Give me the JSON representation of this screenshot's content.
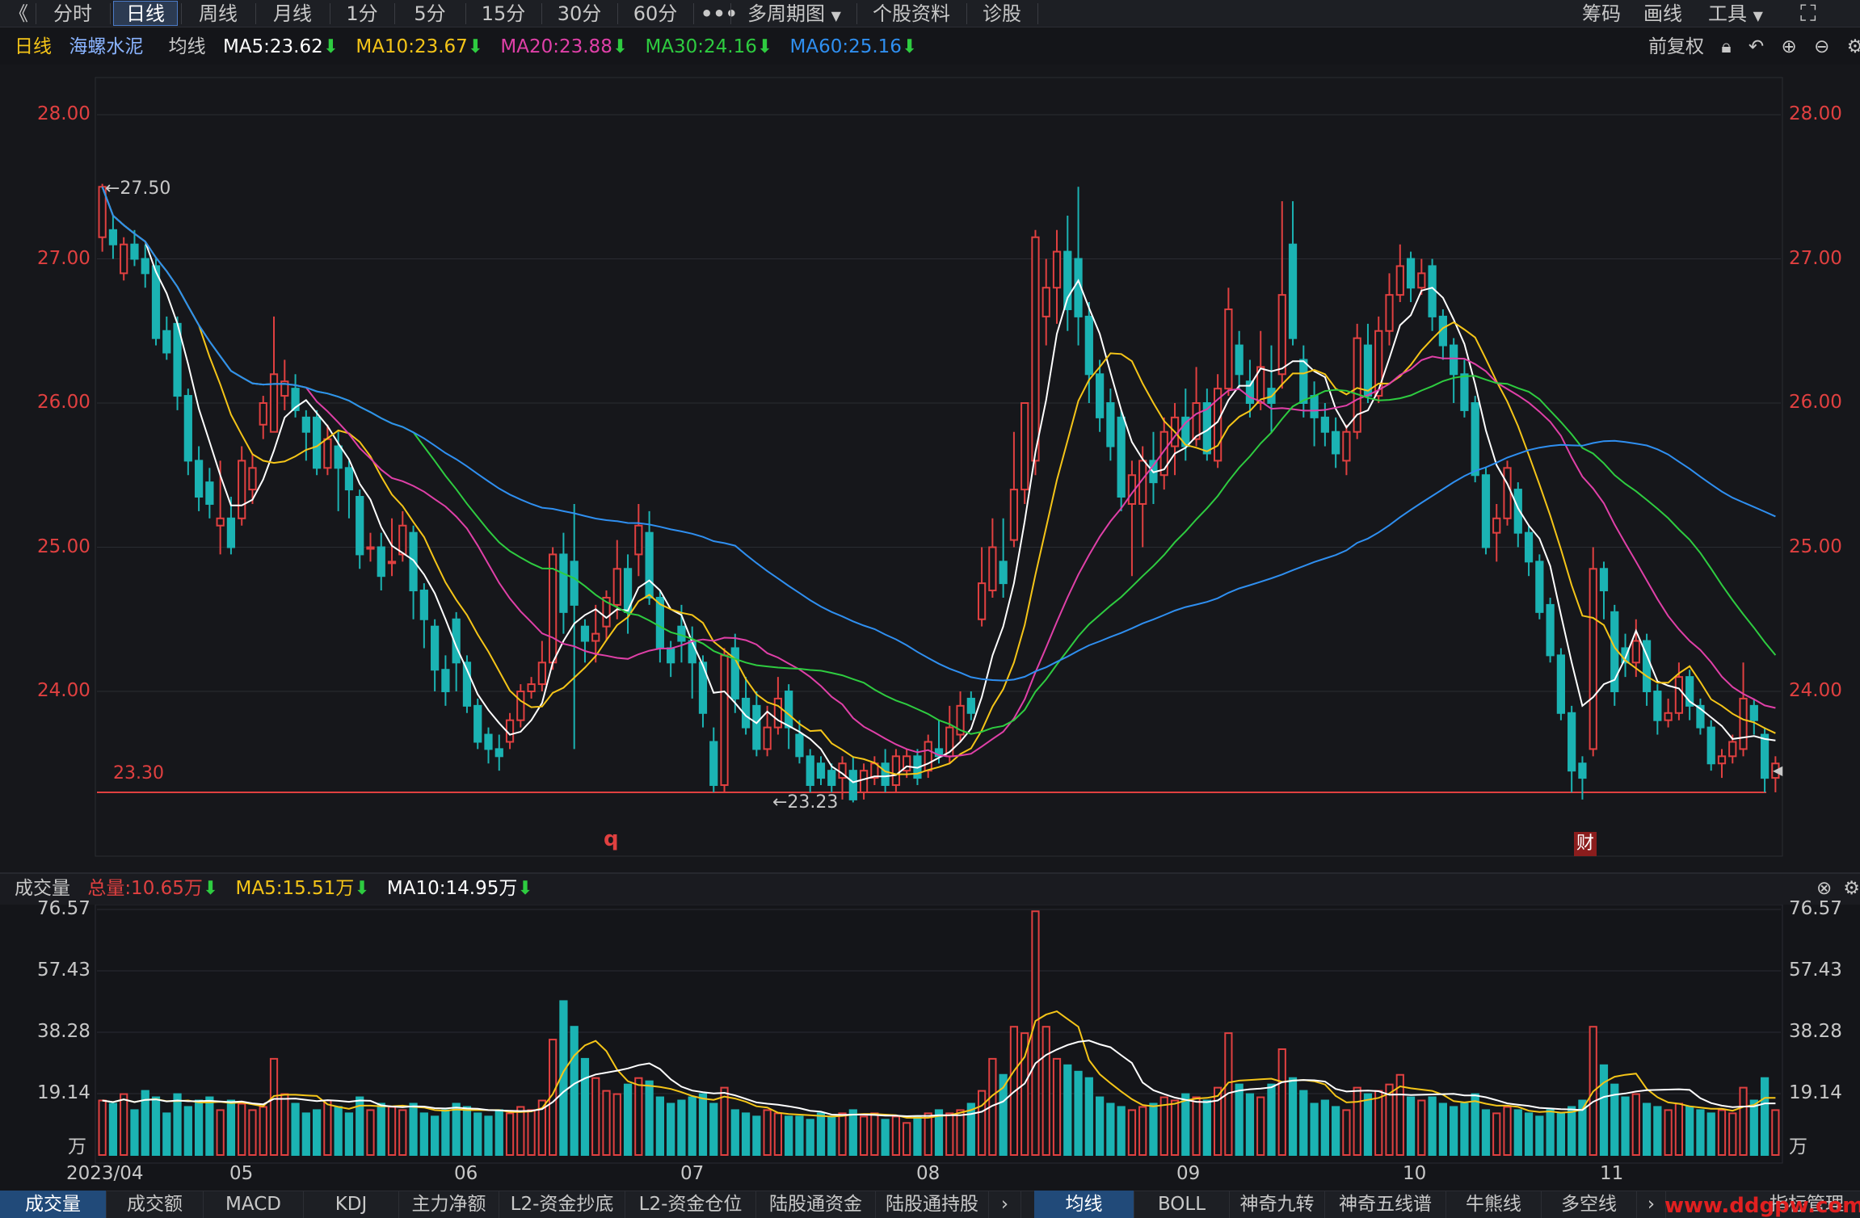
{
  "toolbar": {
    "collapse": "《",
    "periods": [
      "分时",
      "日线",
      "周线",
      "月线",
      "1分",
      "5分",
      "15分",
      "30分",
      "60分"
    ],
    "more": "•••",
    "multi_period": "多周期图",
    "stock_info": "个股资料",
    "diagnose": "诊股",
    "right": [
      "筹码",
      "画线",
      "工具"
    ],
    "fullscreen": "⛶"
  },
  "legend": {
    "period": "日线",
    "stock": "海螺水泥",
    "avg": "均线",
    "ma5": "MA5:23.62",
    "ma10": "MA10:23.67",
    "ma20": "MA20:23.88",
    "ma30": "MA30:24.16",
    "ma60": "MA60:25.16",
    "adjust": "前复权"
  },
  "colors": {
    "up": "#e04040",
    "down": "#1bb3b3",
    "ma5": "#ffffff",
    "ma10": "#f5c518",
    "ma20": "#e040a8",
    "ma30": "#2ecc40",
    "ma60": "#2f8ff0"
  },
  "price_axis": [
    "28.00",
    "27.00",
    "26.00",
    "25.00",
    "24.00"
  ],
  "markers": {
    "high": "←27.50",
    "low": "←23.23",
    "support": "23.30",
    "q": "q",
    "fin": "财"
  },
  "volume_legend": {
    "title": "成交量",
    "total": "总量:10.65万",
    "ma5": "MA5:15.51万",
    "ma10": "MA10:14.95万"
  },
  "volume_axis": [
    "76.57",
    "57.43",
    "38.28",
    "19.14",
    "万"
  ],
  "date_axis": [
    "2023/04",
    "05",
    "06",
    "07",
    "08",
    "09",
    "10",
    "11"
  ],
  "bottom_tabs_left": [
    "成交量",
    "成交额",
    "MACD",
    "KDJ",
    "主力净额",
    "L2-资金抄底",
    "L2-资金仓位",
    "陆股通资金",
    "陆股通持股"
  ],
  "bottom_tabs_right": [
    "均线",
    "BOLL",
    "神奇九转",
    "神奇五线谱",
    "牛熊线",
    "多空线",
    "指标管理"
  ],
  "watermark": "www.ddgpw.com",
  "chart_data": {
    "type": "candlestick",
    "title": "海螺水泥 日线",
    "x_range": [
      "2023-04",
      "2023-11"
    ],
    "y_range": [
      23.0,
      28.2
    ],
    "volume_unit": "万",
    "volume_max": 76.57,
    "moving_averages": [
      5,
      10,
      20,
      30,
      60
    ],
    "candles": [
      {
        "o": 27.15,
        "c": 27.5,
        "h": 27.52,
        "l": 27.05,
        "v": 17
      },
      {
        "o": 27.2,
        "c": 27.1,
        "h": 27.3,
        "l": 27.0,
        "v": 16
      },
      {
        "o": 26.9,
        "c": 27.1,
        "h": 27.15,
        "l": 26.85,
        "v": 19
      },
      {
        "o": 27.1,
        "c": 27.0,
        "h": 27.2,
        "l": 26.95,
        "v": 14
      },
      {
        "o": 27.0,
        "c": 26.9,
        "h": 27.1,
        "l": 26.8,
        "v": 20
      },
      {
        "o": 26.95,
        "c": 26.45,
        "h": 27.0,
        "l": 26.4,
        "v": 18
      },
      {
        "o": 26.5,
        "c": 26.35,
        "h": 26.6,
        "l": 26.3,
        "v": 13
      },
      {
        "o": 26.55,
        "c": 26.05,
        "h": 26.6,
        "l": 25.95,
        "v": 19
      },
      {
        "o": 26.05,
        "c": 25.6,
        "h": 26.1,
        "l": 25.5,
        "v": 15
      },
      {
        "o": 25.6,
        "c": 25.35,
        "h": 25.7,
        "l": 25.25,
        "v": 17
      },
      {
        "o": 25.45,
        "c": 25.3,
        "h": 25.55,
        "l": 25.2,
        "v": 18
      },
      {
        "o": 25.15,
        "c": 25.2,
        "h": 25.6,
        "l": 24.95,
        "v": 14
      },
      {
        "o": 25.2,
        "c": 25.0,
        "h": 25.35,
        "l": 24.95,
        "v": 17
      },
      {
        "o": 25.2,
        "c": 25.6,
        "h": 25.7,
        "l": 25.15,
        "v": 16
      },
      {
        "o": 25.4,
        "c": 25.55,
        "h": 25.65,
        "l": 25.3,
        "v": 14
      },
      {
        "o": 25.85,
        "c": 26.0,
        "h": 26.05,
        "l": 25.75,
        "v": 15
      },
      {
        "o": 25.8,
        "c": 26.2,
        "h": 26.6,
        "l": 25.8,
        "v": 30
      },
      {
        "o": 26.05,
        "c": 26.15,
        "h": 26.3,
        "l": 25.95,
        "v": 19
      },
      {
        "o": 26.1,
        "c": 25.95,
        "h": 26.2,
        "l": 25.9,
        "v": 16
      },
      {
        "o": 25.9,
        "c": 25.8,
        "h": 25.95,
        "l": 25.6,
        "v": 13
      },
      {
        "o": 25.9,
        "c": 25.55,
        "h": 25.95,
        "l": 25.5,
        "v": 14
      },
      {
        "o": 25.55,
        "c": 25.75,
        "h": 25.85,
        "l": 25.5,
        "v": 17
      },
      {
        "o": 25.7,
        "c": 25.55,
        "h": 25.8,
        "l": 25.25,
        "v": 15
      },
      {
        "o": 25.55,
        "c": 25.4,
        "h": 25.6,
        "l": 25.2,
        "v": 13
      },
      {
        "o": 25.35,
        "c": 24.95,
        "h": 25.4,
        "l": 24.85,
        "v": 18
      },
      {
        "o": 25.0,
        "c": 25.0,
        "h": 25.1,
        "l": 24.9,
        "v": 14
      },
      {
        "o": 25.0,
        "c": 24.8,
        "h": 25.1,
        "l": 24.7,
        "v": 16
      },
      {
        "o": 24.9,
        "c": 24.9,
        "h": 25.2,
        "l": 24.8,
        "v": 15
      },
      {
        "o": 24.95,
        "c": 25.15,
        "h": 25.25,
        "l": 24.9,
        "v": 14
      },
      {
        "o": 25.1,
        "c": 24.7,
        "h": 25.15,
        "l": 24.5,
        "v": 16
      },
      {
        "o": 24.7,
        "c": 24.5,
        "h": 24.75,
        "l": 24.3,
        "v": 13
      },
      {
        "o": 24.45,
        "c": 24.15,
        "h": 24.5,
        "l": 24.0,
        "v": 12
      },
      {
        "o": 24.15,
        "c": 24.0,
        "h": 24.25,
        "l": 23.9,
        "v": 14
      },
      {
        "o": 24.5,
        "c": 24.2,
        "h": 24.55,
        "l": 24.0,
        "v": 16
      },
      {
        "o": 24.2,
        "c": 23.9,
        "h": 24.25,
        "l": 23.85,
        "v": 15
      },
      {
        "o": 23.9,
        "c": 23.65,
        "h": 23.95,
        "l": 23.6,
        "v": 13
      },
      {
        "o": 23.7,
        "c": 23.6,
        "h": 23.75,
        "l": 23.5,
        "v": 12
      },
      {
        "o": 23.6,
        "c": 23.55,
        "h": 23.7,
        "l": 23.45,
        "v": 14
      },
      {
        "o": 23.65,
        "c": 23.8,
        "h": 23.85,
        "l": 23.6,
        "v": 13
      },
      {
        "o": 23.8,
        "c": 24.0,
        "h": 24.05,
        "l": 23.75,
        "v": 15
      },
      {
        "o": 24.0,
        "c": 24.05,
        "h": 24.1,
        "l": 23.95,
        "v": 14
      },
      {
        "o": 24.05,
        "c": 24.2,
        "h": 24.35,
        "l": 24.0,
        "v": 17
      },
      {
        "o": 24.2,
        "c": 24.95,
        "h": 25.0,
        "l": 24.15,
        "v": 36
      },
      {
        "o": 24.95,
        "c": 24.55,
        "h": 25.1,
        "l": 24.4,
        "v": 48
      },
      {
        "o": 24.9,
        "c": 24.6,
        "h": 25.3,
        "l": 23.6,
        "v": 40
      },
      {
        "o": 24.45,
        "c": 24.35,
        "h": 24.5,
        "l": 24.2,
        "v": 30
      },
      {
        "o": 24.35,
        "c": 24.4,
        "h": 24.6,
        "l": 24.2,
        "v": 24
      },
      {
        "o": 24.45,
        "c": 24.65,
        "h": 24.7,
        "l": 24.35,
        "v": 20
      },
      {
        "o": 24.6,
        "c": 24.85,
        "h": 25.05,
        "l": 24.5,
        "v": 19
      },
      {
        "o": 24.85,
        "c": 24.55,
        "h": 24.95,
        "l": 24.4,
        "v": 22
      },
      {
        "o": 24.95,
        "c": 25.15,
        "h": 25.3,
        "l": 24.8,
        "v": 24
      },
      {
        "o": 25.1,
        "c": 24.65,
        "h": 25.25,
        "l": 24.6,
        "v": 23
      },
      {
        "o": 24.65,
        "c": 24.3,
        "h": 24.7,
        "l": 24.2,
        "v": 18
      },
      {
        "o": 24.3,
        "c": 24.2,
        "h": 24.35,
        "l": 24.1,
        "v": 16
      },
      {
        "o": 24.45,
        "c": 24.35,
        "h": 24.6,
        "l": 24.2,
        "v": 17
      },
      {
        "o": 24.35,
        "c": 24.2,
        "h": 24.45,
        "l": 23.95,
        "v": 18
      },
      {
        "o": 24.2,
        "c": 23.85,
        "h": 24.25,
        "l": 23.75,
        "v": 19
      },
      {
        "o": 23.65,
        "c": 23.35,
        "h": 23.75,
        "l": 23.3,
        "v": 16
      },
      {
        "o": 23.35,
        "c": 24.25,
        "h": 24.3,
        "l": 23.3,
        "v": 21
      },
      {
        "o": 24.3,
        "c": 23.95,
        "h": 24.4,
        "l": 23.85,
        "v": 14
      },
      {
        "o": 23.95,
        "c": 23.75,
        "h": 24.1,
        "l": 23.7,
        "v": 13
      },
      {
        "o": 23.9,
        "c": 23.6,
        "h": 24.0,
        "l": 23.55,
        "v": 12
      },
      {
        "o": 23.6,
        "c": 23.75,
        "h": 23.9,
        "l": 23.55,
        "v": 14
      },
      {
        "o": 23.75,
        "c": 23.95,
        "h": 24.1,
        "l": 23.7,
        "v": 13
      },
      {
        "o": 24.0,
        "c": 23.75,
        "h": 24.05,
        "l": 23.6,
        "v": 12
      },
      {
        "o": 23.7,
        "c": 23.55,
        "h": 23.8,
        "l": 23.5,
        "v": 12
      },
      {
        "o": 23.55,
        "c": 23.35,
        "h": 23.6,
        "l": 23.3,
        "v": 11
      },
      {
        "o": 23.5,
        "c": 23.4,
        "h": 23.55,
        "l": 23.35,
        "v": 13
      },
      {
        "o": 23.45,
        "c": 23.35,
        "h": 23.5,
        "l": 23.3,
        "v": 12
      },
      {
        "o": 23.4,
        "c": 23.5,
        "h": 23.55,
        "l": 23.25,
        "v": 13
      },
      {
        "o": 23.45,
        "c": 23.25,
        "h": 23.55,
        "l": 23.23,
        "v": 14
      },
      {
        "o": 23.3,
        "c": 23.45,
        "h": 23.5,
        "l": 23.25,
        "v": 12
      },
      {
        "o": 23.4,
        "c": 23.5,
        "h": 23.55,
        "l": 23.35,
        "v": 13
      },
      {
        "o": 23.5,
        "c": 23.35,
        "h": 23.6,
        "l": 23.3,
        "v": 11
      },
      {
        "o": 23.35,
        "c": 23.55,
        "h": 23.6,
        "l": 23.3,
        "v": 12
      },
      {
        "o": 23.45,
        "c": 23.55,
        "h": 23.6,
        "l": 23.4,
        "v": 10
      },
      {
        "o": 23.55,
        "c": 23.4,
        "h": 23.6,
        "l": 23.35,
        "v": 12
      },
      {
        "o": 23.45,
        "c": 23.65,
        "h": 23.7,
        "l": 23.4,
        "v": 13
      },
      {
        "o": 23.6,
        "c": 23.55,
        "h": 23.8,
        "l": 23.5,
        "v": 14
      },
      {
        "o": 23.55,
        "c": 23.75,
        "h": 23.9,
        "l": 23.5,
        "v": 13
      },
      {
        "o": 23.7,
        "c": 23.9,
        "h": 24.0,
        "l": 23.65,
        "v": 14
      },
      {
        "o": 23.95,
        "c": 23.85,
        "h": 24.0,
        "l": 23.8,
        "v": 16
      },
      {
        "o": 24.5,
        "c": 24.75,
        "h": 25.0,
        "l": 24.45,
        "v": 20
      },
      {
        "o": 24.7,
        "c": 25.0,
        "h": 25.2,
        "l": 24.65,
        "v": 30
      },
      {
        "o": 24.9,
        "c": 24.75,
        "h": 25.2,
        "l": 24.65,
        "v": 25
      },
      {
        "o": 25.05,
        "c": 25.4,
        "h": 25.8,
        "l": 25.0,
        "v": 40
      },
      {
        "o": 25.4,
        "c": 26.0,
        "h": 26.0,
        "l": 25.3,
        "v": 38
      },
      {
        "o": 25.6,
        "c": 27.15,
        "h": 27.2,
        "l": 25.5,
        "v": 76
      },
      {
        "o": 26.6,
        "c": 26.8,
        "h": 27.0,
        "l": 26.4,
        "v": 40
      },
      {
        "o": 26.8,
        "c": 27.05,
        "h": 27.2,
        "l": 26.55,
        "v": 30
      },
      {
        "o": 27.05,
        "c": 26.65,
        "h": 27.3,
        "l": 26.5,
        "v": 28
      },
      {
        "o": 27.0,
        "c": 26.6,
        "h": 27.5,
        "l": 26.4,
        "v": 26
      },
      {
        "o": 26.6,
        "c": 26.2,
        "h": 26.7,
        "l": 26.0,
        "v": 24
      },
      {
        "o": 26.2,
        "c": 25.9,
        "h": 26.3,
        "l": 25.8,
        "v": 18
      },
      {
        "o": 26.0,
        "c": 25.7,
        "h": 26.1,
        "l": 25.6,
        "v": 16
      },
      {
        "o": 25.9,
        "c": 25.35,
        "h": 25.95,
        "l": 25.25,
        "v": 15
      },
      {
        "o": 25.3,
        "c": 25.5,
        "h": 25.6,
        "l": 24.8,
        "v": 14
      },
      {
        "o": 25.3,
        "c": 25.6,
        "h": 25.7,
        "l": 25.0,
        "v": 15
      },
      {
        "o": 25.6,
        "c": 25.45,
        "h": 25.8,
        "l": 25.3,
        "v": 16
      },
      {
        "o": 25.5,
        "c": 25.8,
        "h": 25.9,
        "l": 25.4,
        "v": 18
      },
      {
        "o": 25.7,
        "c": 25.9,
        "h": 26.0,
        "l": 25.5,
        "v": 17
      },
      {
        "o": 25.9,
        "c": 25.7,
        "h": 26.1,
        "l": 25.6,
        "v": 19
      },
      {
        "o": 25.75,
        "c": 26.0,
        "h": 26.25,
        "l": 25.7,
        "v": 18
      },
      {
        "o": 26.0,
        "c": 25.65,
        "h": 26.1,
        "l": 25.6,
        "v": 17
      },
      {
        "o": 25.6,
        "c": 26.1,
        "h": 26.2,
        "l": 25.55,
        "v": 21
      },
      {
        "o": 26.1,
        "c": 26.65,
        "h": 26.8,
        "l": 26.05,
        "v": 38
      },
      {
        "o": 26.4,
        "c": 26.2,
        "h": 26.5,
        "l": 26.1,
        "v": 22
      },
      {
        "o": 26.15,
        "c": 26.0,
        "h": 26.3,
        "l": 25.9,
        "v": 19
      },
      {
        "o": 26.0,
        "c": 26.25,
        "h": 26.5,
        "l": 25.95,
        "v": 18
      },
      {
        "o": 26.1,
        "c": 26.0,
        "h": 26.4,
        "l": 25.8,
        "v": 22
      },
      {
        "o": 26.2,
        "c": 26.75,
        "h": 27.4,
        "l": 26.1,
        "v": 33
      },
      {
        "o": 27.1,
        "c": 26.45,
        "h": 27.4,
        "l": 26.4,
        "v": 24
      },
      {
        "o": 26.3,
        "c": 26.0,
        "h": 26.4,
        "l": 25.9,
        "v": 20
      },
      {
        "o": 26.05,
        "c": 25.9,
        "h": 26.15,
        "l": 25.7,
        "v": 16
      },
      {
        "o": 25.9,
        "c": 25.8,
        "h": 26.0,
        "l": 25.7,
        "v": 17
      },
      {
        "o": 25.8,
        "c": 25.65,
        "h": 25.9,
        "l": 25.55,
        "v": 15
      },
      {
        "o": 25.6,
        "c": 25.8,
        "h": 25.85,
        "l": 25.5,
        "v": 14
      },
      {
        "o": 25.8,
        "c": 26.45,
        "h": 26.55,
        "l": 25.75,
        "v": 21
      },
      {
        "o": 26.4,
        "c": 26.05,
        "h": 26.55,
        "l": 26.0,
        "v": 19
      },
      {
        "o": 26.05,
        "c": 26.5,
        "h": 26.6,
        "l": 26.0,
        "v": 20
      },
      {
        "o": 26.5,
        "c": 26.75,
        "h": 26.9,
        "l": 26.4,
        "v": 22
      },
      {
        "o": 26.75,
        "c": 26.95,
        "h": 27.1,
        "l": 26.7,
        "v": 25
      },
      {
        "o": 27.0,
        "c": 26.8,
        "h": 27.05,
        "l": 26.7,
        "v": 18
      },
      {
        "o": 26.8,
        "c": 26.9,
        "h": 27.0,
        "l": 26.75,
        "v": 17
      },
      {
        "o": 26.95,
        "c": 26.6,
        "h": 27.0,
        "l": 26.5,
        "v": 18
      },
      {
        "o": 26.6,
        "c": 26.4,
        "h": 26.65,
        "l": 26.3,
        "v": 16
      },
      {
        "o": 26.4,
        "c": 26.2,
        "h": 26.45,
        "l": 26.0,
        "v": 15
      },
      {
        "o": 26.2,
        "c": 25.95,
        "h": 26.3,
        "l": 25.9,
        "v": 16
      },
      {
        "o": 26.0,
        "c": 25.5,
        "h": 26.05,
        "l": 25.45,
        "v": 19
      },
      {
        "o": 25.5,
        "c": 25.0,
        "h": 25.55,
        "l": 24.95,
        "v": 14
      },
      {
        "o": 25.1,
        "c": 25.2,
        "h": 25.3,
        "l": 24.9,
        "v": 13
      },
      {
        "o": 25.2,
        "c": 25.55,
        "h": 25.6,
        "l": 25.15,
        "v": 15
      },
      {
        "o": 25.4,
        "c": 25.1,
        "h": 25.45,
        "l": 25.0,
        "v": 14
      },
      {
        "o": 25.1,
        "c": 24.9,
        "h": 25.15,
        "l": 24.8,
        "v": 13
      },
      {
        "o": 24.9,
        "c": 24.55,
        "h": 24.95,
        "l": 24.5,
        "v": 12
      },
      {
        "o": 24.6,
        "c": 24.25,
        "h": 24.65,
        "l": 24.2,
        "v": 14
      },
      {
        "o": 24.25,
        "c": 23.85,
        "h": 24.3,
        "l": 23.8,
        "v": 13
      },
      {
        "o": 23.85,
        "c": 23.45,
        "h": 23.9,
        "l": 23.3,
        "v": 15
      },
      {
        "o": 23.5,
        "c": 23.4,
        "h": 23.55,
        "l": 23.25,
        "v": 17
      },
      {
        "o": 23.6,
        "c": 24.85,
        "h": 25.0,
        "l": 23.55,
        "v": 40
      },
      {
        "o": 24.85,
        "c": 24.7,
        "h": 24.9,
        "l": 24.5,
        "v": 28
      },
      {
        "o": 24.55,
        "c": 24.0,
        "h": 24.6,
        "l": 23.9,
        "v": 22
      },
      {
        "o": 24.3,
        "c": 24.2,
        "h": 24.4,
        "l": 24.1,
        "v": 18
      },
      {
        "o": 24.2,
        "c": 24.35,
        "h": 24.5,
        "l": 24.1,
        "v": 19
      },
      {
        "o": 24.35,
        "c": 24.0,
        "h": 24.4,
        "l": 23.9,
        "v": 16
      },
      {
        "o": 24.0,
        "c": 23.8,
        "h": 24.05,
        "l": 23.7,
        "v": 15
      },
      {
        "o": 23.8,
        "c": 23.85,
        "h": 23.95,
        "l": 23.75,
        "v": 14
      },
      {
        "o": 23.85,
        "c": 24.1,
        "h": 24.2,
        "l": 23.8,
        "v": 16
      },
      {
        "o": 24.1,
        "c": 23.9,
        "h": 24.15,
        "l": 23.8,
        "v": 15
      },
      {
        "o": 23.9,
        "c": 23.75,
        "h": 23.95,
        "l": 23.7,
        "v": 14
      },
      {
        "o": 23.75,
        "c": 23.5,
        "h": 23.8,
        "l": 23.45,
        "v": 13
      },
      {
        "o": 23.5,
        "c": 23.55,
        "h": 23.6,
        "l": 23.4,
        "v": 14
      },
      {
        "o": 23.55,
        "c": 23.65,
        "h": 23.7,
        "l": 23.5,
        "v": 13
      },
      {
        "o": 23.6,
        "c": 23.95,
        "h": 24.2,
        "l": 23.55,
        "v": 21
      },
      {
        "o": 23.9,
        "c": 23.8,
        "h": 23.95,
        "l": 23.7,
        "v": 17
      },
      {
        "o": 23.7,
        "c": 23.4,
        "h": 23.75,
        "l": 23.3,
        "v": 24
      },
      {
        "o": 23.4,
        "c": 23.5,
        "h": 23.55,
        "l": 23.3,
        "v": 14
      }
    ]
  }
}
